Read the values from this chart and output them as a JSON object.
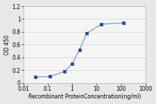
{
  "x": [
    0.031,
    0.125,
    0.5,
    1,
    2,
    4,
    16,
    128
  ],
  "y": [
    0.09,
    0.1,
    0.18,
    0.3,
    0.52,
    0.78,
    0.92,
    0.94
  ],
  "line_color": "#7799CC",
  "marker_color": "#2244AA",
  "marker_size": 3,
  "marker_edge_width": 0.5,
  "line_width": 0.9,
  "xlabel": "Recombinant ProteinConcentration(ng/ml)",
  "ylabel": "OD 450",
  "xlim_log": [
    0.01,
    1000
  ],
  "ylim": [
    0,
    1.2
  ],
  "yticks": [
    0,
    0.2,
    0.4,
    0.6,
    0.8,
    1.0,
    1.2
  ],
  "ytick_labels": [
    "0",
    "0.2",
    "0.4",
    "0.6",
    "0.8",
    "1",
    "1.2"
  ],
  "xticks": [
    0.01,
    0.1,
    1,
    10,
    100,
    1000
  ],
  "xtick_labels": [
    "0.01",
    "0.1",
    "1",
    "10",
    "100",
    "1000"
  ],
  "xlabel_fontsize": 5.5,
  "ylabel_fontsize": 5.5,
  "tick_fontsize": 5.5,
  "background_color": "#e8e8e8",
  "plot_bg_color": "#f5f5f5",
  "grid_color": "#cccccc"
}
